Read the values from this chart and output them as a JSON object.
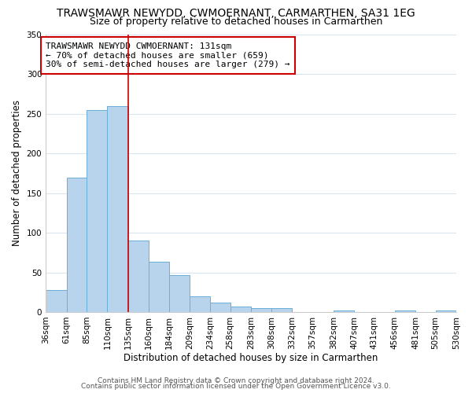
{
  "title": "TRAWSMAWR NEWYDD, CWMOERNANT, CARMARTHEN, SA31 1EG",
  "subtitle": "Size of property relative to detached houses in Carmarthen",
  "xlabel": "Distribution of detached houses by size in Carmarthen",
  "ylabel": "Number of detached properties",
  "bar_color": "#b8d4ec",
  "bar_edge_color": "#6aaed6",
  "vline_x": 135,
  "vline_color": "#cc0000",
  "bin_edges": [
    36,
    61,
    85,
    110,
    135,
    160,
    184,
    209,
    234,
    258,
    283,
    308,
    332,
    357,
    382,
    407,
    431,
    456,
    481,
    505,
    530
  ],
  "bar_heights": [
    28,
    170,
    255,
    260,
    90,
    63,
    47,
    20,
    12,
    7,
    5,
    5,
    0,
    0,
    2,
    0,
    0,
    2,
    0,
    2
  ],
  "ylim": [
    0,
    350
  ],
  "yticks": [
    0,
    50,
    100,
    150,
    200,
    250,
    300,
    350
  ],
  "annotation_box_text": "TRAWSMAWR NEWYDD CWMOERNANT: 131sqm\n← 70% of detached houses are smaller (659)\n30% of semi-detached houses are larger (279) →",
  "footer_line1": "Contains HM Land Registry data © Crown copyright and database right 2024.",
  "footer_line2": "Contains public sector information licensed under the Open Government Licence v3.0.",
  "bg_color": "#ffffff",
  "grid_color": "#d8e4f0",
  "title_fontsize": 10,
  "subtitle_fontsize": 9,
  "axis_label_fontsize": 8.5,
  "tick_label_fontsize": 7.5,
  "annotation_fontsize": 8,
  "footer_fontsize": 6.5
}
